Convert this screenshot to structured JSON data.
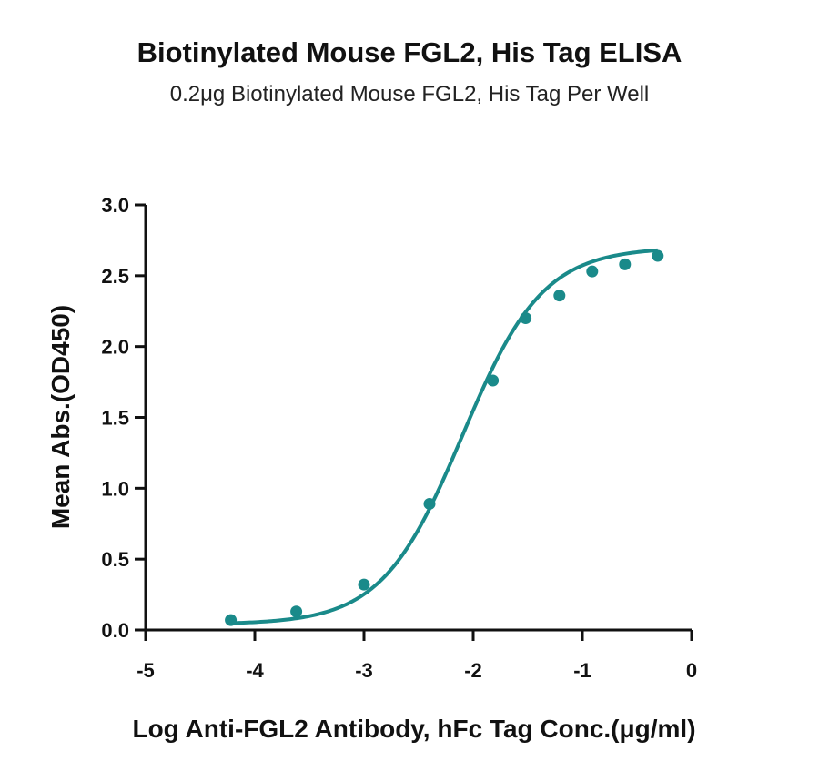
{
  "chart_data": {
    "type": "scatter",
    "title": "Biotinylated Mouse FGL2, His Tag ELISA",
    "subtitle": "0.2μg Biotinylated Mouse FGL2, His Tag Per Well",
    "xlabel": "Log Anti-FGL2 Antibody, hFc Tag Conc.(μg/ml)",
    "ylabel": "Mean Abs.(OD450)",
    "xlim": [
      -5,
      0
    ],
    "ylim": [
      0,
      3.0
    ],
    "x_ticks": [
      -5,
      -4,
      -3,
      -2,
      -1,
      0
    ],
    "x_tick_labels": [
      "-5",
      "-4",
      "-3",
      "-2",
      "-1",
      "0"
    ],
    "y_ticks": [
      0,
      0.5,
      1.0,
      1.5,
      2.0,
      2.5,
      3.0
    ],
    "y_tick_labels": [
      "0.0",
      "0.5",
      "1.0",
      "1.5",
      "2.0",
      "2.5",
      "3.0"
    ],
    "grid": false,
    "series": [
      {
        "x": [
          -4.22,
          -3.62,
          -3.0,
          -2.4,
          -1.82,
          -1.52,
          -1.21,
          -0.91,
          -0.61,
          -0.31
        ],
        "y": [
          0.07,
          0.13,
          0.32,
          0.89,
          1.76,
          2.2,
          2.36,
          2.53,
          2.58,
          2.64
        ],
        "color": "#1a8a8a",
        "fit": "4PL sigmoidal curve"
      }
    ]
  }
}
